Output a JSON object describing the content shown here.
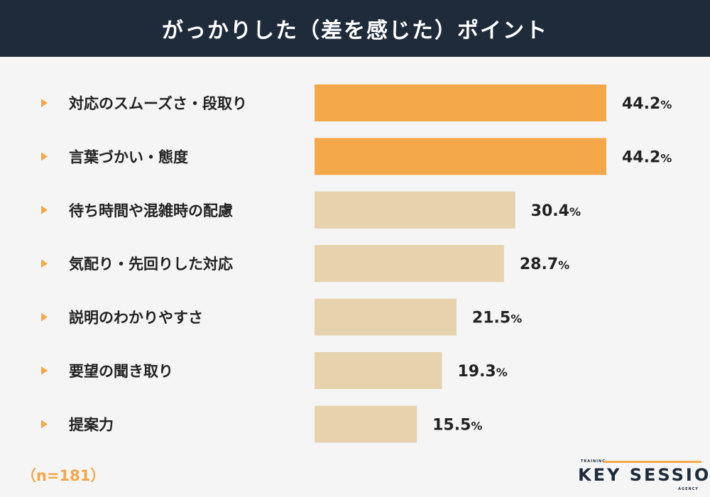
{
  "header": {
    "title": "がっかりした（差を感じた）ポイント"
  },
  "chart_data": {
    "type": "bar",
    "orientation": "horizontal",
    "title": "がっかりした（差を感じた）ポイント",
    "categories": [
      "対応のスムーズさ・段取り",
      "言葉づかい・態度",
      "待ち時間や混雑時の配慮",
      "気配り・先回りした対応",
      "説明のわかりやすさ",
      "要望の聞き取り",
      "提案力"
    ],
    "values": [
      44.2,
      44.2,
      30.4,
      28.7,
      21.5,
      19.3,
      15.5
    ],
    "value_suffix": "%",
    "xlim": [
      0,
      44.2
    ],
    "highlight_color": "#f5a84a",
    "default_color": "#e6d3ae",
    "marker_color": "#f5a84a",
    "label_color": "#222222"
  },
  "footer": {
    "sample_size": "（n=181）"
  },
  "logo": {
    "top_text": "TRAINING",
    "main_text": "KEY SESSION",
    "bottom_text": "AGENCY"
  }
}
